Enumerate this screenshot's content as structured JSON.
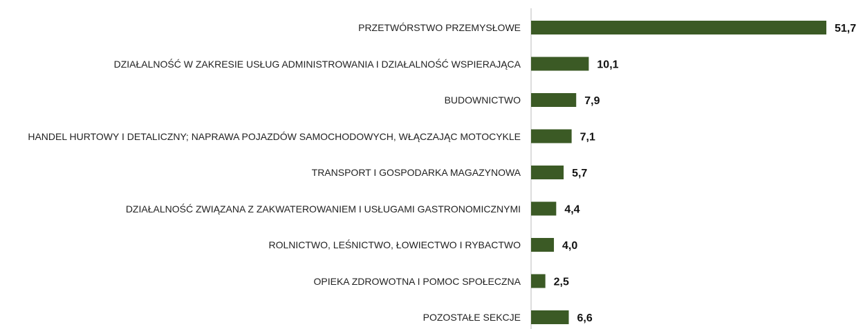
{
  "chart_data": {
    "type": "bar",
    "orientation": "horizontal",
    "categories": [
      "PRZETWÓRSTWO PRZEMYSŁOWE",
      "DZIAŁALNOŚĆ W ZAKRESIE USŁUG ADMINISTROWANIA I DZIAŁALNOŚĆ WSPIERAJĄCA",
      "BUDOWNICTWO",
      "HANDEL HURTOWY I DETALICZNY; NAPRAWA POJAZDÓW SAMOCHODOWYCH, WŁĄCZAJĄC MOTOCYKLE",
      "TRANSPORT I GOSPODARKA MAGAZYNOWA",
      "DZIAŁALNOŚĆ ZWIĄZANA Z ZAKWATEROWANIEM I USŁUGAMI GASTRONOMICZNYMI",
      "ROLNICTWO, LEŚNICTWO, ŁOWIECTWO I RYBACTWO",
      "OPIEKA ZDROWOTNA I POMOC SPOŁECZNA",
      "POZOSTAŁE SEKCJE"
    ],
    "values": [
      51.7,
      10.1,
      7.9,
      7.1,
      5.7,
      4.4,
      4.0,
      2.5,
      6.6
    ],
    "value_labels": [
      "51,7",
      "10,1",
      "7,9",
      "7,1",
      "5,7",
      "4,4",
      "4,0",
      "2,5",
      "6,6"
    ],
    "color": "#3b5a25"
  }
}
